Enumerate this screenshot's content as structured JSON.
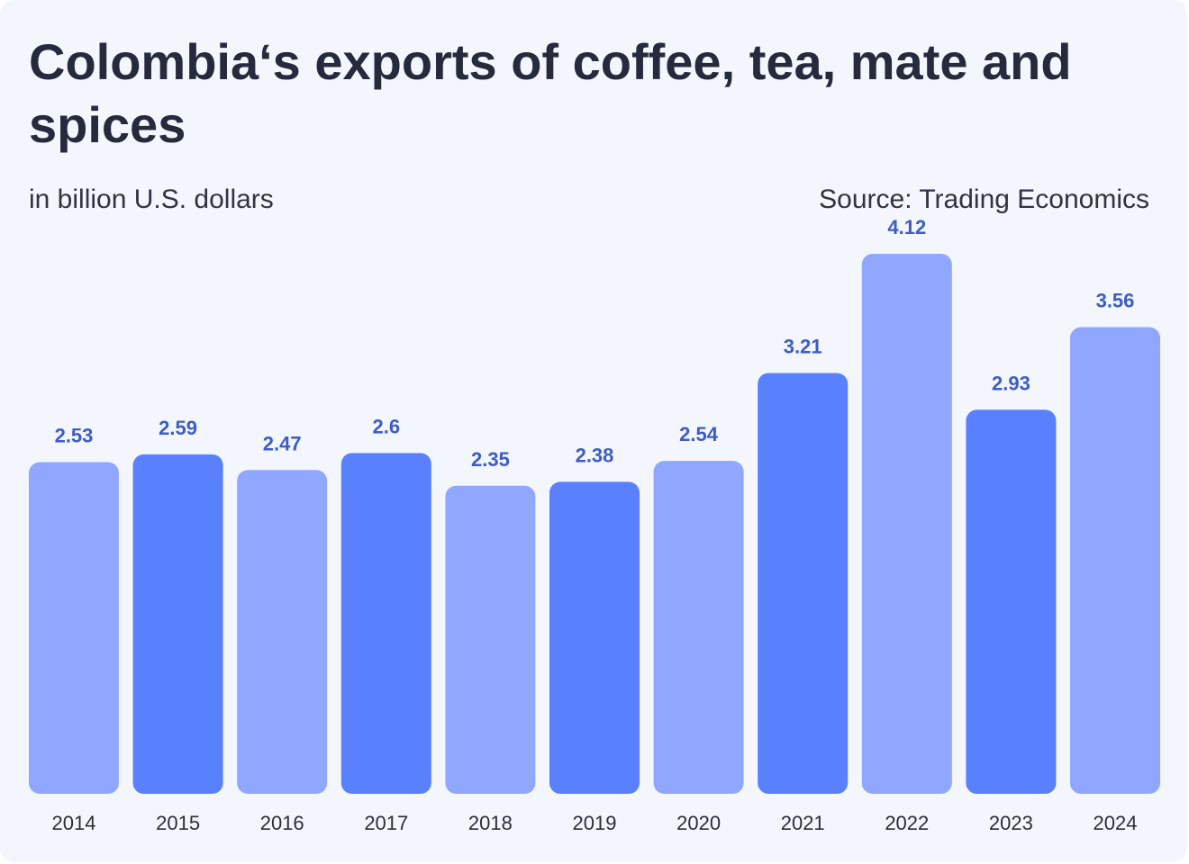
{
  "header": {
    "title": "Colombia‘s exports of coffee, tea, mate and spices",
    "subtitle": "in billion U.S. dollars",
    "source": "Source: Trading Economics"
  },
  "colors": {
    "background": "#f3f6fd",
    "bar_light": "#91a6ff",
    "bar_dark": "#5880ff",
    "value_label": "#3d5cc8"
  },
  "chart_data": {
    "type": "bar",
    "categories": [
      "2014",
      "2015",
      "2016",
      "2017",
      "2018",
      "2019",
      "2020",
      "2021",
      "2022",
      "2023",
      "2024"
    ],
    "values": [
      2.53,
      2.59,
      2.47,
      2.6,
      2.35,
      2.38,
      2.54,
      3.21,
      4.12,
      2.93,
      3.56
    ],
    "value_labels": [
      "2.53",
      "2.59",
      "2.47",
      "2.6",
      "2.35",
      "2.38",
      "2.54",
      "3.21",
      "4.12",
      "2.93",
      "3.56"
    ],
    "bar_shades": [
      "light",
      "dark",
      "light",
      "dark",
      "light",
      "dark",
      "light",
      "dark",
      "light",
      "dark",
      "light"
    ],
    "title": "Colombia‘s exports of coffee, tea, mate and spices",
    "subtitle": "in billion U.S. dollars",
    "xlabel": "",
    "ylabel": "",
    "ylim": [
      0,
      4.12
    ],
    "grid": false,
    "legend": "none",
    "data_labels": "above-bars"
  }
}
